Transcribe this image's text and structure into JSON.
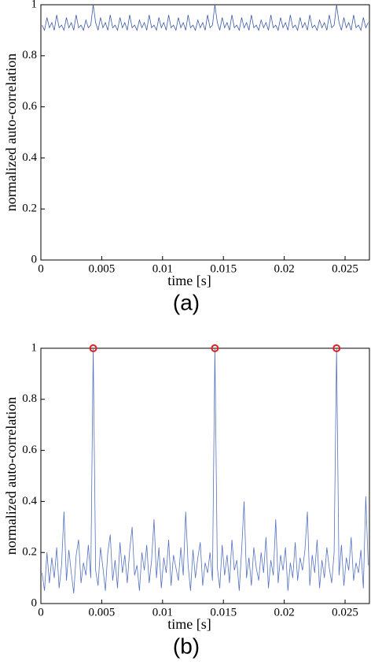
{
  "chart_data": [
    {
      "type": "line",
      "ylabel": "normalized auto-correlation",
      "xlabel": "time [s]",
      "caption": "(a)",
      "xlim": [
        0,
        0.027
      ],
      "xticks": [
        0,
        0.005,
        0.01,
        0.015,
        0.02,
        0.025
      ],
      "ylim": [
        0,
        1
      ],
      "yticks": [
        0,
        0.2,
        0.4,
        0.6,
        0.8,
        1
      ],
      "x": [
        0.0001,
        0.0003,
        0.0005,
        0.0007,
        0.0009,
        0.0011,
        0.0013,
        0.0015,
        0.0017,
        0.0019,
        0.0021,
        0.0023,
        0.0025,
        0.0027,
        0.0029,
        0.0031,
        0.0033,
        0.0035,
        0.0037,
        0.0039,
        0.0041,
        0.0043,
        0.0045,
        0.0047,
        0.0049,
        0.0051,
        0.0053,
        0.0055,
        0.0057,
        0.0059,
        0.0061,
        0.0063,
        0.0065,
        0.0067,
        0.0069,
        0.0071,
        0.0073,
        0.0075,
        0.0077,
        0.0079,
        0.0081,
        0.0083,
        0.0085,
        0.0087,
        0.0089,
        0.0091,
        0.0093,
        0.0095,
        0.0097,
        0.0099,
        0.0101,
        0.0103,
        0.0105,
        0.0107,
        0.0109,
        0.0111,
        0.0113,
        0.0115,
        0.0117,
        0.0119,
        0.0121,
        0.0123,
        0.0125,
        0.0127,
        0.0129,
        0.0131,
        0.0133,
        0.0135,
        0.0137,
        0.0139,
        0.0141,
        0.0143,
        0.0145,
        0.0147,
        0.0149,
        0.0151,
        0.0153,
        0.0155,
        0.0157,
        0.0159,
        0.0161,
        0.0163,
        0.0165,
        0.0167,
        0.0169,
        0.0171,
        0.0173,
        0.0175,
        0.0177,
        0.0179,
        0.0181,
        0.0183,
        0.0185,
        0.0187,
        0.0189,
        0.0191,
        0.0193,
        0.0195,
        0.0197,
        0.0199,
        0.0201,
        0.0203,
        0.0205,
        0.0207,
        0.0209,
        0.0211,
        0.0213,
        0.0215,
        0.0217,
        0.0219,
        0.0221,
        0.0223,
        0.0225,
        0.0227,
        0.0229,
        0.0231,
        0.0233,
        0.0235,
        0.0237,
        0.0239,
        0.0241,
        0.0243,
        0.0245,
        0.0247,
        0.0249,
        0.0251,
        0.0253,
        0.0255,
        0.0257,
        0.0259,
        0.0261,
        0.0263,
        0.0265,
        0.0267,
        0.0269
      ],
      "series": [
        {
          "color": "#3b5aa6",
          "values": [
            0.92,
            0.9,
            0.95,
            0.91,
            0.93,
            0.9,
            0.96,
            0.91,
            0.92,
            0.9,
            0.95,
            0.91,
            0.93,
            0.9,
            0.96,
            0.91,
            0.92,
            0.9,
            0.94,
            0.91,
            0.92,
            1.0,
            0.93,
            0.9,
            0.95,
            0.91,
            0.93,
            0.9,
            0.96,
            0.91,
            0.92,
            0.9,
            0.95,
            0.91,
            0.93,
            0.9,
            0.96,
            0.91,
            0.92,
            0.9,
            0.94,
            0.91,
            0.93,
            0.9,
            0.96,
            0.91,
            0.92,
            0.9,
            0.95,
            0.91,
            0.93,
            0.9,
            0.96,
            0.91,
            0.92,
            0.9,
            0.95,
            0.91,
            0.93,
            0.9,
            0.96,
            0.91,
            0.92,
            0.9,
            0.94,
            0.91,
            0.93,
            0.9,
            0.96,
            0.91,
            0.92,
            1.0,
            0.93,
            0.9,
            0.95,
            0.91,
            0.93,
            0.9,
            0.96,
            0.91,
            0.92,
            0.9,
            0.95,
            0.91,
            0.93,
            0.9,
            0.96,
            0.91,
            0.92,
            0.9,
            0.94,
            0.91,
            0.93,
            0.9,
            0.96,
            0.91,
            0.92,
            0.9,
            0.95,
            0.91,
            0.93,
            0.9,
            0.96,
            0.91,
            0.92,
            0.9,
            0.95,
            0.91,
            0.93,
            0.9,
            0.96,
            0.91,
            0.92,
            0.9,
            0.94,
            0.91,
            0.93,
            0.9,
            0.96,
            0.91,
            0.92,
            1.0,
            0.93,
            0.9,
            0.95,
            0.91,
            0.93,
            0.9,
            0.96,
            0.91,
            0.92,
            0.9,
            0.95,
            0.91,
            0.93
          ]
        }
      ]
    },
    {
      "type": "line",
      "ylabel": "normalized auto-correlation",
      "xlabel": "time [s]",
      "caption": "(b)",
      "xlim": [
        0,
        0.027
      ],
      "xticks": [
        0,
        0.005,
        0.01,
        0.015,
        0.02,
        0.025
      ],
      "ylim": [
        0,
        1
      ],
      "yticks": [
        0,
        0.2,
        0.4,
        0.6,
        0.8,
        1
      ],
      "x": [
        0.0001,
        0.0003,
        0.0005,
        0.0007,
        0.0009,
        0.0011,
        0.0013,
        0.0015,
        0.0017,
        0.0019,
        0.0021,
        0.0023,
        0.0025,
        0.0027,
        0.0029,
        0.0031,
        0.0033,
        0.0035,
        0.0037,
        0.0039,
        0.0041,
        0.0043,
        0.0045,
        0.0047,
        0.0049,
        0.0051,
        0.0053,
        0.0055,
        0.0057,
        0.0059,
        0.0061,
        0.0063,
        0.0065,
        0.0067,
        0.0069,
        0.0071,
        0.0073,
        0.0075,
        0.0077,
        0.0079,
        0.0081,
        0.0083,
        0.0085,
        0.0087,
        0.0089,
        0.0091,
        0.0093,
        0.0095,
        0.0097,
        0.0099,
        0.0101,
        0.0103,
        0.0105,
        0.0107,
        0.0109,
        0.0111,
        0.0113,
        0.0115,
        0.0117,
        0.0119,
        0.0121,
        0.0123,
        0.0125,
        0.0127,
        0.0129,
        0.0131,
        0.0133,
        0.0135,
        0.0137,
        0.0139,
        0.0141,
        0.0143,
        0.0145,
        0.0147,
        0.0149,
        0.0151,
        0.0153,
        0.0155,
        0.0157,
        0.0159,
        0.0161,
        0.0163,
        0.0165,
        0.0167,
        0.0169,
        0.0171,
        0.0173,
        0.0175,
        0.0177,
        0.0179,
        0.0181,
        0.0183,
        0.0185,
        0.0187,
        0.0189,
        0.0191,
        0.0193,
        0.0195,
        0.0197,
        0.0199,
        0.0201,
        0.0203,
        0.0205,
        0.0207,
        0.0209,
        0.0211,
        0.0213,
        0.0215,
        0.0217,
        0.0219,
        0.0221,
        0.0223,
        0.0225,
        0.0227,
        0.0229,
        0.0231,
        0.0233,
        0.0235,
        0.0237,
        0.0239,
        0.0241,
        0.0243,
        0.0245,
        0.0247,
        0.0249,
        0.0251,
        0.0253,
        0.0255,
        0.0257,
        0.0259,
        0.0261,
        0.0263,
        0.0265,
        0.0267,
        0.0269
      ],
      "series": [
        {
          "color": "#5572c0",
          "values": [
            0.12,
            0.05,
            0.2,
            0.08,
            0.18,
            0.1,
            0.22,
            0.06,
            0.15,
            0.36,
            0.09,
            0.21,
            0.12,
            0.04,
            0.19,
            0.25,
            0.08,
            0.16,
            0.11,
            0.23,
            0.1,
            1.0,
            0.13,
            0.07,
            0.22,
            0.14,
            0.05,
            0.2,
            0.27,
            0.09,
            0.17,
            0.06,
            0.24,
            0.12,
            0.19,
            0.08,
            0.21,
            0.3,
            0.11,
            0.15,
            0.05,
            0.2,
            0.13,
            0.23,
            0.08,
            0.17,
            0.33,
            0.1,
            0.22,
            0.06,
            0.18,
            0.12,
            0.25,
            0.07,
            0.19,
            0.14,
            0.09,
            0.22,
            0.11,
            0.36,
            0.15,
            0.05,
            0.21,
            0.1,
            0.18,
            0.24,
            0.07,
            0.16,
            0.12,
            0.2,
            0.09,
            1.0,
            0.14,
            0.06,
            0.23,
            0.11,
            0.19,
            0.08,
            0.25,
            0.13,
            0.17,
            0.05,
            0.21,
            0.4,
            0.1,
            0.18,
            0.07,
            0.22,
            0.14,
            0.09,
            0.2,
            0.12,
            0.26,
            0.06,
            0.17,
            0.11,
            0.33,
            0.08,
            0.19,
            0.13,
            0.22,
            0.05,
            0.16,
            0.1,
            0.24,
            0.09,
            0.18,
            0.13,
            0.21,
            0.36,
            0.07,
            0.19,
            0.12,
            0.25,
            0.06,
            0.17,
            0.1,
            0.22,
            0.14,
            0.08,
            0.2,
            1.0,
            0.11,
            0.23,
            0.07,
            0.18,
            0.13,
            0.26,
            0.09,
            0.16,
            0.12,
            0.21,
            0.06,
            0.42,
            0.15
          ]
        }
      ],
      "peaks": {
        "color": "#e02020",
        "x": [
          0.0043,
          0.0143,
          0.0243
        ],
        "values": [
          1,
          1,
          1
        ]
      }
    }
  ]
}
